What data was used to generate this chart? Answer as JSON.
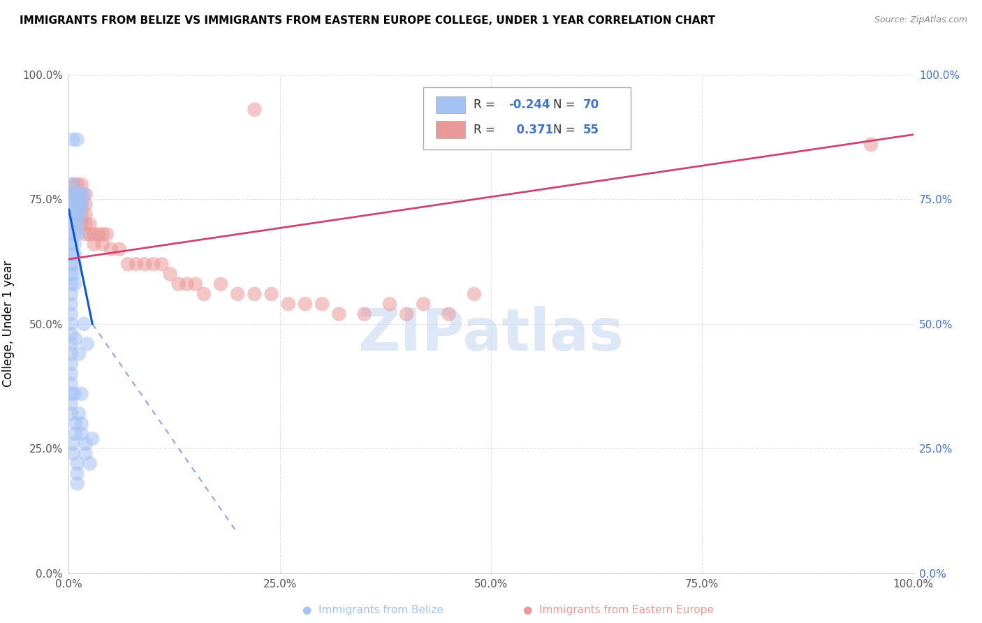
{
  "title": "IMMIGRANTS FROM BELIZE VS IMMIGRANTS FROM EASTERN EUROPE COLLEGE, UNDER 1 YEAR CORRELATION CHART",
  "source": "Source: ZipAtlas.com",
  "ylabel": "College, Under 1 year",
  "watermark": "ZIPatlas",
  "legend_r_blue": "-0.244",
  "legend_n_blue": "70",
  "legend_r_pink": "0.371",
  "legend_n_pink": "55",
  "blue_color": "#a4c2f4",
  "pink_color": "#ea9999",
  "blue_line_color": "#1155cc",
  "pink_line_color": "#cc4477",
  "right_tick_color": "#4472c4",
  "left_tick_color": "#555555",
  "ytick_labels": [
    "0.0%",
    "25.0%",
    "50.0%",
    "75.0%",
    "100.0%"
  ],
  "ytick_values": [
    0.0,
    0.25,
    0.5,
    0.75,
    1.0
  ],
  "xtick_labels": [
    "0.0%",
    "25.0%",
    "50.0%",
    "75.0%",
    "100.0%"
  ],
  "xtick_values": [
    0.0,
    0.25,
    0.5,
    0.75,
    1.0
  ],
  "blue_scatter": [
    [
      0.005,
      0.87
    ],
    [
      0.01,
      0.87
    ],
    [
      0.005,
      0.78
    ],
    [
      0.008,
      0.75
    ],
    [
      0.012,
      0.73
    ],
    [
      0.003,
      0.76
    ],
    [
      0.006,
      0.76
    ],
    [
      0.01,
      0.76
    ],
    [
      0.014,
      0.76
    ],
    [
      0.018,
      0.76
    ],
    [
      0.003,
      0.74
    ],
    [
      0.006,
      0.74
    ],
    [
      0.009,
      0.74
    ],
    [
      0.013,
      0.74
    ],
    [
      0.016,
      0.74
    ],
    [
      0.003,
      0.72
    ],
    [
      0.006,
      0.72
    ],
    [
      0.01,
      0.72
    ],
    [
      0.013,
      0.72
    ],
    [
      0.003,
      0.7
    ],
    [
      0.007,
      0.7
    ],
    [
      0.011,
      0.7
    ],
    [
      0.003,
      0.68
    ],
    [
      0.007,
      0.68
    ],
    [
      0.011,
      0.68
    ],
    [
      0.003,
      0.66
    ],
    [
      0.007,
      0.66
    ],
    [
      0.003,
      0.64
    ],
    [
      0.007,
      0.64
    ],
    [
      0.003,
      0.62
    ],
    [
      0.007,
      0.62
    ],
    [
      0.003,
      0.6
    ],
    [
      0.007,
      0.6
    ],
    [
      0.003,
      0.58
    ],
    [
      0.007,
      0.58
    ],
    [
      0.003,
      0.56
    ],
    [
      0.003,
      0.54
    ],
    [
      0.003,
      0.52
    ],
    [
      0.003,
      0.5
    ],
    [
      0.003,
      0.48
    ],
    [
      0.003,
      0.46
    ],
    [
      0.003,
      0.44
    ],
    [
      0.003,
      0.42
    ],
    [
      0.003,
      0.4
    ],
    [
      0.003,
      0.38
    ],
    [
      0.003,
      0.36
    ],
    [
      0.003,
      0.34
    ],
    [
      0.003,
      0.32
    ],
    [
      0.008,
      0.3
    ],
    [
      0.008,
      0.28
    ],
    [
      0.005,
      0.26
    ],
    [
      0.005,
      0.24
    ],
    [
      0.01,
      0.22
    ],
    [
      0.01,
      0.2
    ],
    [
      0.01,
      0.18
    ],
    [
      0.015,
      0.3
    ],
    [
      0.015,
      0.28
    ],
    [
      0.02,
      0.26
    ],
    [
      0.02,
      0.24
    ],
    [
      0.025,
      0.22
    ],
    [
      0.028,
      0.27
    ],
    [
      0.008,
      0.47
    ],
    [
      0.012,
      0.44
    ],
    [
      0.018,
      0.5
    ],
    [
      0.022,
      0.46
    ],
    [
      0.007,
      0.36
    ],
    [
      0.012,
      0.32
    ],
    [
      0.015,
      0.36
    ]
  ],
  "pink_scatter": [
    [
      0.005,
      0.78
    ],
    [
      0.01,
      0.78
    ],
    [
      0.015,
      0.78
    ],
    [
      0.005,
      0.76
    ],
    [
      0.01,
      0.76
    ],
    [
      0.015,
      0.76
    ],
    [
      0.02,
      0.76
    ],
    [
      0.005,
      0.74
    ],
    [
      0.01,
      0.74
    ],
    [
      0.015,
      0.74
    ],
    [
      0.02,
      0.74
    ],
    [
      0.01,
      0.72
    ],
    [
      0.015,
      0.72
    ],
    [
      0.02,
      0.72
    ],
    [
      0.015,
      0.7
    ],
    [
      0.02,
      0.7
    ],
    [
      0.025,
      0.7
    ],
    [
      0.02,
      0.68
    ],
    [
      0.025,
      0.68
    ],
    [
      0.03,
      0.68
    ],
    [
      0.035,
      0.68
    ],
    [
      0.04,
      0.68
    ],
    [
      0.045,
      0.68
    ],
    [
      0.03,
      0.66
    ],
    [
      0.04,
      0.66
    ],
    [
      0.05,
      0.65
    ],
    [
      0.06,
      0.65
    ],
    [
      0.07,
      0.62
    ],
    [
      0.08,
      0.62
    ],
    [
      0.09,
      0.62
    ],
    [
      0.1,
      0.62
    ],
    [
      0.11,
      0.62
    ],
    [
      0.12,
      0.6
    ],
    [
      0.13,
      0.58
    ],
    [
      0.14,
      0.58
    ],
    [
      0.15,
      0.58
    ],
    [
      0.16,
      0.56
    ],
    [
      0.18,
      0.58
    ],
    [
      0.2,
      0.56
    ],
    [
      0.22,
      0.56
    ],
    [
      0.24,
      0.56
    ],
    [
      0.26,
      0.54
    ],
    [
      0.28,
      0.54
    ],
    [
      0.3,
      0.54
    ],
    [
      0.32,
      0.52
    ],
    [
      0.35,
      0.52
    ],
    [
      0.38,
      0.54
    ],
    [
      0.4,
      0.52
    ],
    [
      0.42,
      0.54
    ],
    [
      0.45,
      0.52
    ],
    [
      0.48,
      0.56
    ],
    [
      0.22,
      0.93
    ],
    [
      0.95,
      0.86
    ]
  ],
  "blue_trendline_solid": [
    [
      0.0,
      0.73
    ],
    [
      0.028,
      0.5
    ]
  ],
  "blue_trendline_dashed": [
    [
      0.028,
      0.5
    ],
    [
      0.2,
      0.08
    ]
  ],
  "pink_trendline": [
    [
      0.0,
      0.63
    ],
    [
      1.0,
      0.88
    ]
  ]
}
